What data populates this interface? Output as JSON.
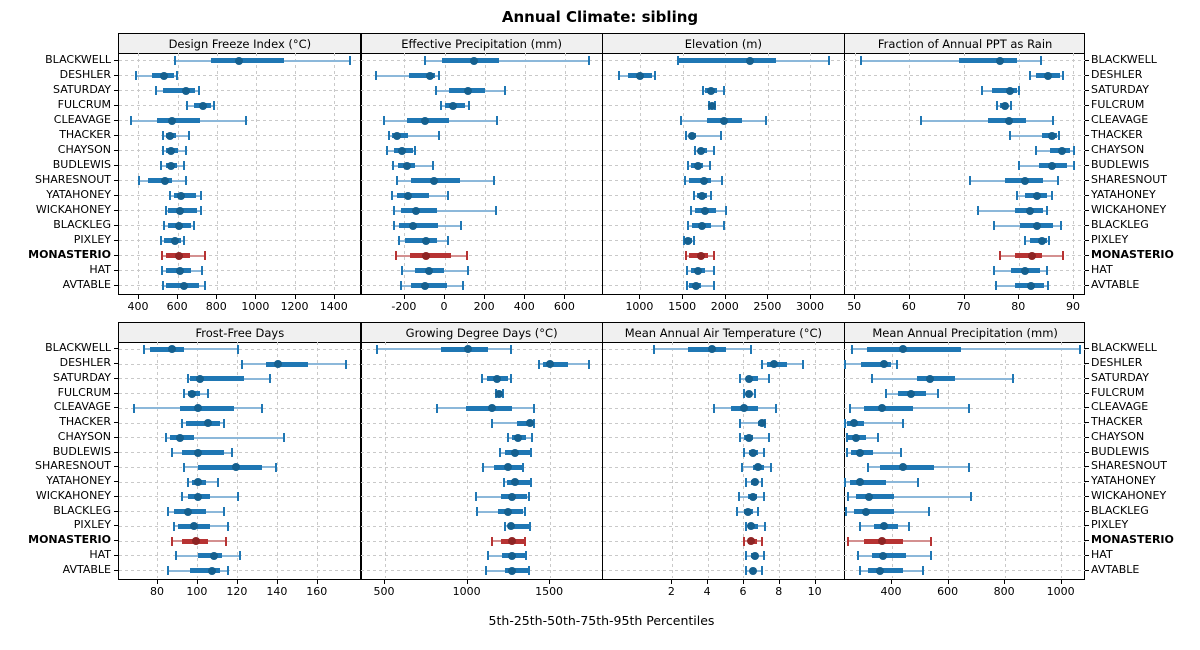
{
  "title": "Annual Climate: sibling",
  "caption": "5th-25th-50th-75th-95th Percentiles",
  "colors": {
    "normal_whisker": "#8cb8da",
    "normal_bar": "#1f77b4",
    "normal_dot": "#15608f",
    "highlight_whisker": "#d49090",
    "highlight_bar": "#b73333",
    "highlight_dot": "#8e2424",
    "grid": "#c9c9c9",
    "strip_bg": "#f0f0f0",
    "border": "#000000"
  },
  "chart_data": {
    "type": "scatter",
    "subtype": "percentile-interval-dotplot",
    "title": "Annual Climate: sibling",
    "percentiles": [
      5,
      25,
      50,
      75,
      95
    ],
    "legend_note": "5th-25th-50th-75th-95th Percentiles",
    "grid": true,
    "layout": {
      "rows": 2,
      "cols": 4
    },
    "rows": [
      "BLACKWELL",
      "DESHLER",
      "SATURDAY",
      "FULCRUM",
      "CLEAVAGE",
      "THACKER",
      "CHAYSON",
      "BUDLEWIS",
      "SHARESNOUT",
      "YATAHONEY",
      "WICKAHONEY",
      "BLACKLEG",
      "PIXLEY",
      "MONASTERIO",
      "HAT",
      "AVTABLE"
    ],
    "highlighted_row": "MONASTERIO",
    "panels": [
      {
        "title": "Design Freeze Index (°C)",
        "xlim": [
          298,
          1533
        ],
        "ticks": [
          400,
          600,
          800,
          1000,
          1200,
          1400
        ],
        "values": [
          [
            585,
            770,
            910,
            1140,
            1480
          ],
          [
            385,
            465,
            530,
            580,
            595
          ],
          [
            486,
            525,
            638,
            686,
            707
          ],
          [
            647,
            680,
            726,
            770,
            784
          ],
          [
            358,
            490,
            568,
            710,
            946
          ],
          [
            525,
            540,
            560,
            590,
            656
          ],
          [
            524,
            540,
            563,
            600,
            642
          ],
          [
            512,
            536,
            563,
            595,
            630
          ],
          [
            402,
            446,
            533,
            568,
            642
          ],
          [
            559,
            580,
            617,
            690,
            715
          ],
          [
            538,
            550,
            612,
            695,
            717
          ],
          [
            530,
            548,
            603,
            668,
            680
          ],
          [
            512,
            528,
            585,
            615,
            628
          ],
          [
            519,
            536,
            603,
            660,
            735
          ],
          [
            516,
            540,
            609,
            665,
            723
          ],
          [
            521,
            540,
            630,
            705,
            735
          ]
        ]
      },
      {
        "title": "Effective Precipitation (mm)",
        "xlim": [
          -420,
          785
        ],
        "ticks": [
          -200,
          0,
          200,
          400,
          600
        ],
        "values": [
          [
            -101,
            -15,
            143,
            268,
            718
          ],
          [
            -343,
            -180,
            -75,
            -50,
            -32
          ],
          [
            -45,
            20,
            115,
            200,
            298
          ],
          [
            -18,
            2,
            38,
            100,
            122
          ],
          [
            -306,
            -190,
            -98,
            22,
            260
          ],
          [
            -277,
            -265,
            -240,
            -185,
            -28
          ],
          [
            -287,
            -255,
            -212,
            -162,
            -150
          ],
          [
            -260,
            -235,
            -187,
            -148,
            -62
          ],
          [
            -240,
            -168,
            -57,
            77,
            243
          ],
          [
            -265,
            -240,
            -185,
            -82,
            15
          ],
          [
            -252,
            -218,
            -145,
            -40,
            252
          ],
          [
            -252,
            -228,
            -162,
            -35,
            82
          ],
          [
            -228,
            -198,
            -93,
            -40,
            15
          ],
          [
            -243,
            -173,
            -95,
            32,
            110
          ],
          [
            -212,
            -152,
            -82,
            -6,
            115
          ],
          [
            -218,
            -168,
            -102,
            9,
            90
          ]
        ]
      },
      {
        "title": "Elevation (m)",
        "xlim": [
          555,
          3390
        ],
        "ticks": [
          1000,
          1500,
          2000,
          2500,
          3000
        ],
        "values": [
          [
            1440,
            1450,
            2280,
            2590,
            3210
          ],
          [
            745,
            850,
            1000,
            1130,
            1165
          ],
          [
            1735,
            1760,
            1830,
            1900,
            1985
          ],
          [
            1800,
            1812,
            1835,
            1862,
            1878
          ],
          [
            1475,
            1775,
            1985,
            2195,
            2475
          ],
          [
            1535,
            1570,
            1610,
            1650,
            1945
          ],
          [
            1645,
            1670,
            1715,
            1775,
            1860
          ],
          [
            1555,
            1595,
            1678,
            1735,
            1810
          ],
          [
            1525,
            1570,
            1743,
            1830,
            1955
          ],
          [
            1630,
            1660,
            1724,
            1785,
            1825
          ],
          [
            1595,
            1645,
            1755,
            1890,
            2005
          ],
          [
            1555,
            1610,
            1727,
            1830,
            1975
          ],
          [
            1505,
            1515,
            1560,
            1608,
            1627
          ],
          [
            1535,
            1570,
            1708,
            1793,
            1858
          ],
          [
            1550,
            1595,
            1670,
            1754,
            1858
          ],
          [
            1543,
            1570,
            1647,
            1716,
            1858
          ]
        ]
      },
      {
        "title": "Fraction of Annual PPT as Rain",
        "xlim": [
          48,
          92.2
        ],
        "ticks": [
          50,
          60,
          70,
          80,
          90
        ],
        "values": [
          [
            51,
            69,
            76.5,
            79.5,
            84
          ],
          [
            82,
            83,
            85.3,
            87.4,
            88
          ],
          [
            73.2,
            75,
            78.3,
            79.5,
            80
          ],
          [
            76,
            76.4,
            77.3,
            78,
            78.4
          ],
          [
            62,
            74.2,
            78.2,
            81.3,
            86.2
          ],
          [
            78.3,
            84.2,
            86,
            86.9,
            87.3
          ],
          [
            83,
            85.7,
            87.8,
            89.2,
            90
          ],
          [
            80,
            83.6,
            86,
            88.8,
            90
          ],
          [
            71,
            77.4,
            81,
            84.4,
            87
          ],
          [
            79.5,
            81,
            83.2,
            85,
            86
          ],
          [
            72.5,
            79.3,
            82,
            84.4,
            85
          ],
          [
            75.4,
            80.2,
            83.2,
            86.2,
            87.7
          ],
          [
            81,
            82,
            84.2,
            85,
            85.4
          ],
          [
            76.5,
            79.3,
            82.4,
            84.2,
            88
          ],
          [
            75.4,
            78.4,
            81.1,
            83.8,
            85.1
          ],
          [
            75.7,
            79.2,
            82.2,
            84.5,
            85.2
          ]
        ]
      },
      {
        "title": "Frost-Free Days",
        "xlim": [
          60.5,
          181.5
        ],
        "ticks": [
          80,
          100,
          120,
          140,
          160
        ],
        "values": [
          [
            73,
            76,
            87,
            93,
            120
          ],
          [
            122,
            134,
            140,
            155,
            174
          ],
          [
            95,
            96,
            101,
            123,
            136
          ],
          [
            93,
            95,
            97,
            101,
            105
          ],
          [
            68,
            91,
            100,
            118,
            132
          ],
          [
            92,
            94,
            105,
            111,
            113
          ],
          [
            84,
            86,
            91,
            98,
            143
          ],
          [
            87,
            92,
            100,
            113,
            117
          ],
          [
            93,
            100,
            119,
            132,
            139
          ],
          [
            95,
            97,
            100,
            104,
            110
          ],
          [
            92,
            95,
            100,
            106,
            120
          ],
          [
            85,
            88,
            95,
            104,
            113
          ],
          [
            88,
            90,
            98,
            106,
            115
          ],
          [
            87,
            92,
            99,
            105,
            114
          ],
          [
            89,
            100,
            108,
            112,
            121
          ],
          [
            85,
            96,
            107,
            111,
            115
          ]
        ]
      },
      {
        "title": "Growing Degree Days (°C)",
        "xlim": [
          353,
          1817
        ],
        "ticks": [
          500,
          1000,
          1500
        ],
        "values": [
          [
            450,
            840,
            1005,
            1125,
            1260
          ],
          [
            1430,
            1455,
            1498,
            1610,
            1735
          ],
          [
            1085,
            1120,
            1180,
            1245,
            1265
          ],
          [
            1170,
            1180,
            1193,
            1207,
            1213
          ],
          [
            815,
            990,
            1145,
            1270,
            1405
          ],
          [
            1145,
            1300,
            1380,
            1395,
            1400
          ],
          [
            1245,
            1270,
            1305,
            1355,
            1390
          ],
          [
            1195,
            1227,
            1288,
            1375,
            1385
          ],
          [
            1095,
            1160,
            1245,
            1328,
            1336
          ],
          [
            1220,
            1240,
            1290,
            1378,
            1385
          ],
          [
            1050,
            1200,
            1268,
            1360,
            1370
          ],
          [
            1060,
            1185,
            1247,
            1338,
            1347
          ],
          [
            1225,
            1245,
            1260,
            1370,
            1380
          ],
          [
            1150,
            1200,
            1268,
            1340,
            1347
          ],
          [
            1125,
            1207,
            1268,
            1348,
            1352
          ],
          [
            1110,
            1227,
            1266,
            1363,
            1370
          ]
        ]
      },
      {
        "title": "Mean Annual Air Temperature (°C)",
        "xlim": [
          -1.9,
          11.6
        ],
        "ticks": [
          2,
          4,
          6,
          8,
          10
        ],
        "values": [
          [
            1.0,
            2.9,
            4.2,
            5.0,
            6.4
          ],
          [
            7.0,
            7.3,
            7.7,
            8.4,
            9.3
          ],
          [
            5.8,
            6.1,
            6.3,
            6.8,
            7.4
          ],
          [
            6.0,
            6.2,
            6.3,
            6.4,
            6.6
          ],
          [
            4.3,
            5.3,
            6.0,
            6.8,
            7.8
          ],
          [
            5.8,
            6.8,
            7.0,
            7.1,
            7.2
          ],
          [
            5.8,
            6.0,
            6.3,
            6.5,
            7.4
          ],
          [
            6.0,
            6.3,
            6.5,
            6.8,
            7.1
          ],
          [
            5.9,
            6.5,
            6.8,
            7.1,
            7.5
          ],
          [
            6.1,
            6.4,
            6.6,
            6.8,
            7.0
          ],
          [
            5.7,
            6.2,
            6.5,
            6.7,
            7.1
          ],
          [
            5.6,
            6.0,
            6.2,
            6.5,
            6.8
          ],
          [
            6.1,
            6.3,
            6.4,
            6.8,
            7.2
          ],
          [
            6.0,
            6.2,
            6.4,
            6.7,
            7.0
          ],
          [
            6.1,
            6.4,
            6.6,
            6.8,
            7.1
          ],
          [
            6.1,
            6.4,
            6.5,
            6.7,
            7.0
          ]
        ]
      },
      {
        "title": "Mean Annual Precipitation (mm)",
        "xlim": [
          231,
          1086
        ],
        "ticks": [
          400,
          600,
          800,
          1000
        ],
        "values": [
          [
            260,
            310,
            440,
            645,
            1065
          ],
          [
            235,
            290,
            373,
            397,
            418
          ],
          [
            328,
            490,
            535,
            622,
            828
          ],
          [
            380,
            420,
            467,
            520,
            563
          ],
          [
            250,
            300,
            365,
            473,
            673
          ],
          [
            235,
            240,
            267,
            302,
            438
          ],
          [
            240,
            246,
            273,
            308,
            350
          ],
          [
            241,
            255,
            288,
            332,
            432
          ],
          [
            314,
            359,
            438,
            549,
            673
          ],
          [
            235,
            253,
            285,
            379,
            491
          ],
          [
            244,
            273,
            320,
            408,
            679
          ],
          [
            238,
            267,
            308,
            408,
            532
          ],
          [
            285,
            335,
            371,
            420,
            461
          ],
          [
            244,
            302,
            364,
            438,
            538
          ],
          [
            279,
            328,
            367,
            449,
            538
          ],
          [
            285,
            314,
            359,
            438,
            508
          ]
        ]
      }
    ]
  }
}
